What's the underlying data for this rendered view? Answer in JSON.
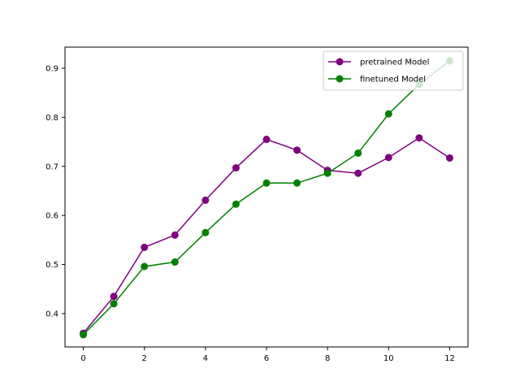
{
  "chart_data": {
    "type": "line",
    "title": "",
    "xlabel": "",
    "ylabel": "",
    "x": [
      0,
      1,
      2,
      3,
      4,
      5,
      6,
      7,
      8,
      9,
      10,
      11,
      12
    ],
    "series": [
      {
        "name": "pretrained Model",
        "color": "#800080",
        "marker": "circle",
        "values": [
          0.36,
          0.435,
          0.535,
          0.56,
          0.631,
          0.697,
          0.755,
          0.733,
          0.692,
          0.686,
          0.718,
          0.758,
          0.717
        ]
      },
      {
        "name": "finetuned Model",
        "color": "#008000",
        "marker": "circle",
        "values": [
          0.357,
          0.42,
          0.496,
          0.505,
          0.565,
          0.623,
          0.666,
          0.666,
          0.686,
          0.727,
          0.807,
          0.867,
          0.915
        ]
      }
    ],
    "xlim": [
      -0.6,
      12.6
    ],
    "ylim": [
      0.332,
      0.943
    ],
    "xticks": [
      "0",
      "2",
      "4",
      "6",
      "8",
      "10",
      "12"
    ],
    "yticks": [
      "0.4",
      "0.5",
      "0.6",
      "0.7",
      "0.8",
      "0.9"
    ],
    "grid": false,
    "legend_position": "top-right"
  }
}
